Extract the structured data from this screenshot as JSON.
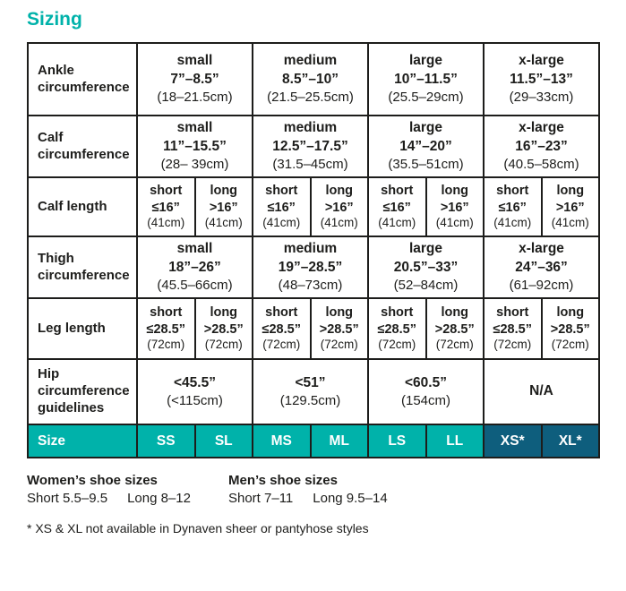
{
  "title": "Sizing",
  "colors": {
    "teal": "#00b2aa",
    "dark_teal": "#0e5e7d",
    "text": "#1d1d1b",
    "border": "#1d1d1b",
    "background": "#ffffff"
  },
  "table": {
    "rows": {
      "ankle": {
        "label": "Ankle circumference",
        "cells": [
          {
            "size": "small",
            "inches": "7”–8.5”",
            "cm": "(18–21.5cm)"
          },
          {
            "size": "medium",
            "inches": "8.5”–10”",
            "cm": "(21.5–25.5cm)"
          },
          {
            "size": "large",
            "inches": "10”–11.5”",
            "cm": "(25.5–29cm)"
          },
          {
            "size": "x-large",
            "inches": "11.5”–13”",
            "cm": "(29–33cm)"
          }
        ]
      },
      "calf_circ": {
        "label": "Calf circumference",
        "cells": [
          {
            "size": "small",
            "inches": "11”–15.5”",
            "cm": "(28– 39cm)"
          },
          {
            "size": "medium",
            "inches": "12.5”–17.5”",
            "cm": "(31.5–45cm)"
          },
          {
            "size": "large",
            "inches": "14”–20”",
            "cm": "(35.5–51cm)"
          },
          {
            "size": "x-large",
            "inches": "16”–23”",
            "cm": "(40.5–58cm)"
          }
        ]
      },
      "calf_len": {
        "label": "Calf length",
        "cells": [
          {
            "len": "short",
            "inches": "≤16”",
            "cm": "(41cm)"
          },
          {
            "len": "long",
            "inches": ">16”",
            "cm": "(41cm)"
          },
          {
            "len": "short",
            "inches": "≤16”",
            "cm": "(41cm)"
          },
          {
            "len": "long",
            "inches": ">16”",
            "cm": "(41cm)"
          },
          {
            "len": "short",
            "inches": "≤16”",
            "cm": "(41cm)"
          },
          {
            "len": "long",
            "inches": ">16”",
            "cm": "(41cm)"
          },
          {
            "len": "short",
            "inches": "≤16”",
            "cm": "(41cm)"
          },
          {
            "len": "long",
            "inches": ">16”",
            "cm": "(41cm)"
          }
        ]
      },
      "thigh": {
        "label": "Thigh circumference",
        "cells": [
          {
            "size": "small",
            "inches": "18”–26”",
            "cm": "(45.5–66cm)"
          },
          {
            "size": "medium",
            "inches": "19”–28.5”",
            "cm": "(48–73cm)"
          },
          {
            "size": "large",
            "inches": "20.5”–33”",
            "cm": "(52–84cm)"
          },
          {
            "size": "x-large",
            "inches": "24”–36”",
            "cm": "(61–92cm)"
          }
        ]
      },
      "leg_len": {
        "label": "Leg length",
        "cells": [
          {
            "len": "short",
            "inches": "≤28.5”",
            "cm": "(72cm)"
          },
          {
            "len": "long",
            "inches": ">28.5”",
            "cm": "(72cm)"
          },
          {
            "len": "short",
            "inches": "≤28.5”",
            "cm": "(72cm)"
          },
          {
            "len": "long",
            "inches": ">28.5”",
            "cm": "(72cm)"
          },
          {
            "len": "short",
            "inches": "≤28.5”",
            "cm": "(72cm)"
          },
          {
            "len": "long",
            "inches": ">28.5”",
            "cm": "(72cm)"
          },
          {
            "len": "short",
            "inches": "≤28.5”",
            "cm": "(72cm)"
          },
          {
            "len": "long",
            "inches": ">28.5”",
            "cm": "(72cm)"
          }
        ]
      },
      "hip": {
        "label": "Hip circumference guidelines",
        "cells": [
          {
            "inches": "<45.5”",
            "cm": "(<115cm)"
          },
          {
            "inches": "<51”",
            "cm": "(129.5cm)"
          },
          {
            "inches": "<60.5”",
            "cm": "(154cm)"
          },
          {
            "inches": "N/A",
            "cm": ""
          }
        ]
      },
      "size": {
        "label": "Size",
        "cells": [
          "SS",
          "SL",
          "MS",
          "ML",
          "LS",
          "LL",
          "XS*",
          "XL*"
        ]
      }
    }
  },
  "footer": {
    "women": {
      "title": "Women’s shoe sizes",
      "short_range": "Short 5.5–9.5",
      "long_range": "Long 8–12"
    },
    "men": {
      "title": "Men’s shoe sizes",
      "short_range": "Short 7–11",
      "long_range": "Long 9.5–14"
    },
    "note": "* XS & XL not available in Dynaven sheer or pantyhose styles"
  }
}
